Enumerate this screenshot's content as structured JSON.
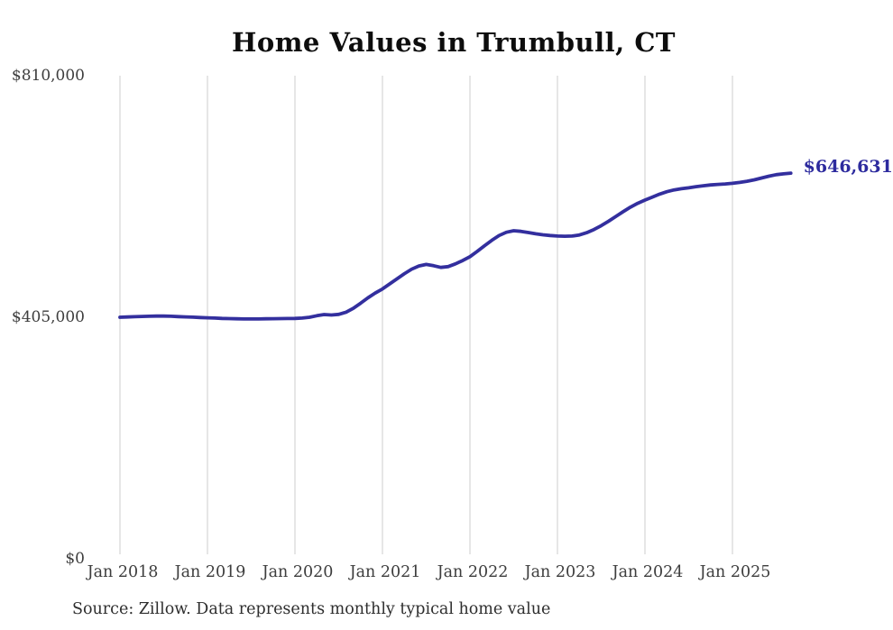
{
  "chart_data": {
    "type": "line",
    "title": "Home Values in Trumbull, CT",
    "source_note": "Source: Zillow. Data represents monthly typical home value",
    "end_label": "$646,631",
    "end_value": 646631,
    "line_color": "#332f9e",
    "end_label_color": "#2d2b9e",
    "grid_color": "#cccccc",
    "grid": "vertical-only",
    "legend": "none",
    "ylim": [
      0,
      810000
    ],
    "y_ticks": [
      {
        "label": "$0",
        "value": 0
      },
      {
        "label": "$405,000",
        "value": 405000
      },
      {
        "label": "$810,000",
        "value": 810000
      }
    ],
    "x_tick_labels": [
      "Jan 2018",
      "Jan 2019",
      "Jan 2020",
      "Jan 2021",
      "Jan 2022",
      "Jan 2023",
      "Jan 2024",
      "Jan 2025"
    ],
    "series": [
      {
        "name": "Monthly typical home value",
        "start": "2018-01",
        "frequency": "monthly",
        "values": [
          405000,
          405400,
          405900,
          406300,
          406700,
          407000,
          407000,
          406600,
          406100,
          405600,
          405100,
          404600,
          404100,
          403600,
          403100,
          402700,
          402400,
          402200,
          402100,
          402200,
          402400,
          402600,
          402800,
          402900,
          403000,
          403600,
          405000,
          407500,
          409500,
          408800,
          409800,
          413500,
          420000,
          428500,
          437500,
          445500,
          452500,
          461000,
          469500,
          478000,
          485500,
          491000,
          493500,
          491500,
          488500,
          490000,
          494500,
          500000,
          506500,
          515500,
          525000,
          534000,
          542000,
          547500,
          550000,
          549000,
          547000,
          545000,
          543200,
          542000,
          541200,
          540800,
          541200,
          543000,
          546800,
          552000,
          558500,
          566000,
          574000,
          582000,
          589500,
          596000,
          601500,
          606500,
          611500,
          615500,
          618500,
          620500,
          622000,
          624000,
          625500,
          626800,
          627800,
          628500,
          629500,
          631000,
          633000,
          635500,
          638500,
          641500,
          644000,
          645500,
          646631
        ]
      }
    ]
  }
}
